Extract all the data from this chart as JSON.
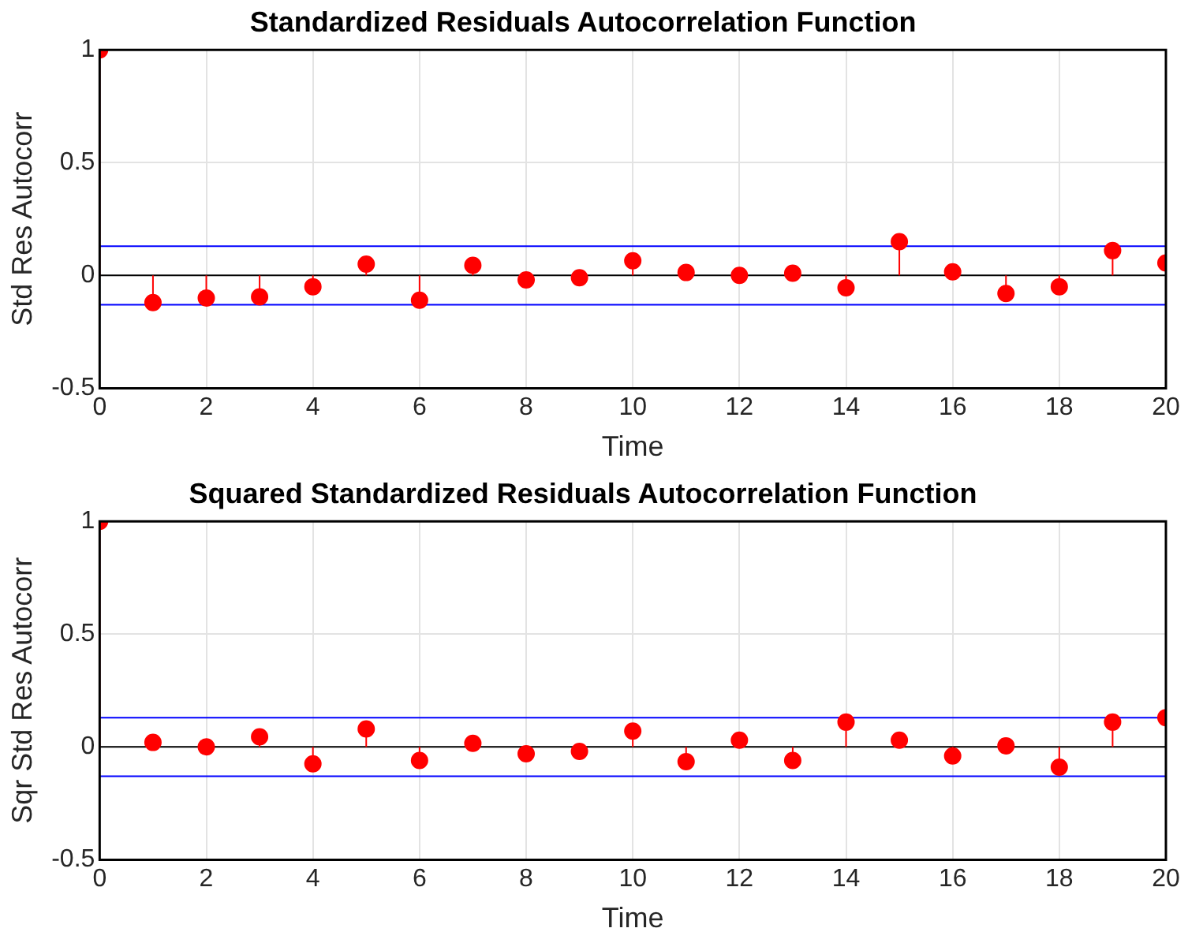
{
  "chart_data": [
    {
      "type": "lollipop",
      "title": "Standardized Residuals Autocorrelation Function",
      "xlabel": "Time",
      "ylabel": "Std Res Autocorr",
      "x": [
        0,
        1,
        2,
        3,
        4,
        5,
        6,
        7,
        8,
        9,
        10,
        11,
        12,
        13,
        14,
        15,
        16,
        17,
        18,
        19,
        20
      ],
      "values": [
        1,
        -0.12,
        -0.1,
        -0.095,
        -0.05,
        0.05,
        -0.11,
        0.045,
        -0.02,
        -0.01,
        0.065,
        0.013,
        0,
        0.01,
        -0.055,
        0.15,
        0.016,
        -0.08,
        -0.05,
        0.11,
        0.055
      ],
      "color": "#ff0000",
      "marker": "circle",
      "xlim": [
        0,
        20
      ],
      "ylim": [
        -0.5,
        1
      ],
      "xticks": [
        0,
        2,
        4,
        6,
        8,
        10,
        12,
        14,
        16,
        18,
        20
      ],
      "yticks": [
        -0.5,
        0,
        0.5,
        1
      ],
      "grid": true,
      "ref_lines": [
        {
          "axis": "y",
          "value": 0,
          "color": "#000000"
        },
        {
          "axis": "y",
          "value": 0.13,
          "color": "#0000ff"
        },
        {
          "axis": "y",
          "value": -0.13,
          "color": "#0000ff"
        }
      ]
    },
    {
      "type": "lollipop",
      "title": "Squared Standardized Residuals Autocorrelation Function",
      "xlabel": "Time",
      "ylabel": "Sqr Std Res Autocorr",
      "x": [
        0,
        1,
        2,
        3,
        4,
        5,
        6,
        7,
        8,
        9,
        10,
        11,
        12,
        13,
        14,
        15,
        16,
        17,
        18,
        19,
        20
      ],
      "values": [
        1,
        0.02,
        0,
        0.045,
        -0.075,
        0.08,
        -0.06,
        0.016,
        -0.03,
        -0.02,
        0.07,
        -0.065,
        0.03,
        -0.06,
        0.11,
        0.03,
        -0.04,
        0.005,
        -0.09,
        0.11,
        0.13
      ],
      "color": "#ff0000",
      "marker": "circle",
      "xlim": [
        0,
        20
      ],
      "ylim": [
        -0.5,
        1
      ],
      "xticks": [
        0,
        2,
        4,
        6,
        8,
        10,
        12,
        14,
        16,
        18,
        20
      ],
      "yticks": [
        -0.5,
        0,
        0.5,
        1
      ],
      "grid": true,
      "ref_lines": [
        {
          "axis": "y",
          "value": 0,
          "color": "#000000"
        },
        {
          "axis": "y",
          "value": 0.13,
          "color": "#0000ff"
        },
        {
          "axis": "y",
          "value": -0.13,
          "color": "#0000ff"
        }
      ]
    }
  ]
}
